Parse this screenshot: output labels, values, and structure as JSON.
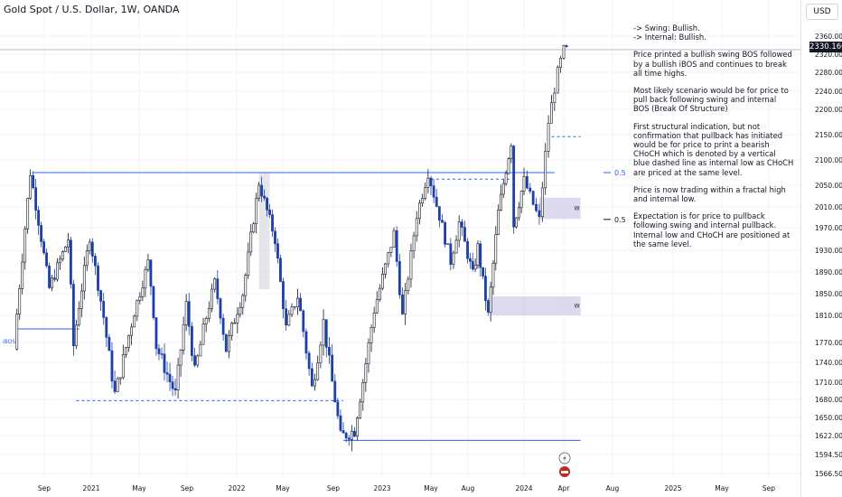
{
  "header": {
    "symbol_title": "Gold Spot / U.S. Dollar, 1W, OANDA",
    "currency": "USD"
  },
  "notes": {
    "swing": "-> Swing: Bullish.",
    "internal": "-> Internal: Bullish.",
    "p1": "Price  printed a bullish swing BOS followed by a bullish iBOS and continues to break all time highs.",
    "p2": "Most likely scenario would be for price to pull back following swing and internal BOS (Break Of Structure)",
    "p3": "First structural indication, but not confirmation that pullback has initiated would be for price to print a bearish CHoCH which is denoted by a vertical blue dashed line as internal low as CHoCH are priced at the same level.",
    "p4": "Price is now trading within a fractal high and internal low.",
    "p5": "Expectation is for price to pullback following swing and internal pullback.  Internal low and CHoCH are positioned at the same level."
  },
  "colors": {
    "up": "#131722",
    "down": "#1e3ea8",
    "line": "#2962ff",
    "zone": "#d1cde8",
    "grid": "#f0f3fa",
    "text": "#131722",
    "axis_text": "#131722"
  },
  "chart_data": {
    "type": "candlestick",
    "title": "Gold Spot / U.S. Dollar, 1W, OANDA",
    "last_price": "2330.160",
    "y_ticks": [
      "2360.000",
      "2320.000",
      "2280.000",
      "2240.000",
      "2200.000",
      "2150.000",
      "2100.000",
      "2050.000",
      "2010.000",
      "1970.000",
      "1930.000",
      "1890.000",
      "1850.000",
      "1810.000",
      "1770.000",
      "1740.000",
      "1710.000",
      "1680.000",
      "1650.000",
      "1622.000",
      "1594.500",
      "1566.500"
    ],
    "y_tick_values": [
      2360,
      2320,
      2280,
      2240,
      2200,
      2150,
      2100,
      2050,
      2010,
      1970,
      1930,
      1890,
      1850,
      1810,
      1770,
      1740,
      1710,
      1680,
      1650,
      1622,
      1594.5,
      1566.5
    ],
    "x_ticks": [
      "Sep",
      "2021",
      "May",
      "Sep",
      "2022",
      "May",
      "Sep",
      "2023",
      "May",
      "Aug",
      "2024",
      "Apr",
      "Aug",
      "2025",
      "May",
      "Sep"
    ],
    "x_tick_dates": [
      "2020-09-01",
      "2021-01-01",
      "2021-05-01",
      "2021-09-01",
      "2022-01-01",
      "2022-05-01",
      "2022-09-01",
      "2023-01-01",
      "2023-05-01",
      "2023-08-01",
      "2024-01-01",
      "2024-04-01",
      "2024-08-01",
      "2025-01-01",
      "2025-05-01",
      "2025-09-01"
    ],
    "x_range": [
      "2020-06-22",
      "2025-11-01"
    ],
    "annotations": {
      "ibos_label": "iBOS",
      "fib_label_upper": "0.5",
      "fib_label_lower": "0.5",
      "zone_label": "W",
      "zone_label_2": "W"
    },
    "levels": {
      "swing_high": 2075,
      "swing_high_start": "2020-08-03",
      "swing_high_end": "2024-03-11",
      "internal_high": 2062,
      "internal_high_start": "2023-05-01",
      "internal_high_end": "2023-12-01",
      "ibos": 1790,
      "ibos_start": "2020-06-22",
      "ibos_end": "2020-12-01",
      "swing_low": 1678,
      "swing_low_start": "2020-11-23",
      "swing_low_end": "2022-09-26",
      "low_2022": 1615,
      "low_2022_start": "2022-09-26",
      "low_2022_end": "2024-05-13",
      "choch_level": 2146,
      "choch_start": "2024-03-04",
      "choch_end": "2024-05-13",
      "fib_upper": 2075,
      "fib_lower": 1986
    },
    "zones": [
      {
        "top": 2027,
        "bottom": 1987,
        "start": "2024-02-05",
        "end": "2024-05-13"
      },
      {
        "top": 1845,
        "bottom": 1810,
        "start": "2023-10-02",
        "end": "2024-05-13"
      }
    ],
    "highlight": {
      "top": 2075,
      "bottom": 1858,
      "start": "2022-02-28",
      "end": "2022-03-28"
    },
    "anchors": [
      [
        "2020-06-22",
        1760
      ],
      [
        "2020-08-03",
        2075
      ],
      [
        "2020-09-21",
        1860
      ],
      [
        "2020-11-09",
        1950
      ],
      [
        "2020-11-23",
        1765
      ],
      [
        "2021-01-04",
        1955
      ],
      [
        "2021-03-08",
        1690
      ],
      [
        "2021-06-01",
        1910
      ],
      [
        "2021-06-21",
        1765
      ],
      [
        "2021-08-09",
        1690
      ],
      [
        "2021-09-06",
        1830
      ],
      [
        "2021-09-27",
        1725
      ],
      [
        "2021-11-15",
        1870
      ],
      [
        "2021-12-13",
        1760
      ],
      [
        "2022-01-24",
        1850
      ],
      [
        "2022-03-07",
        2055
      ],
      [
        "2022-04-18",
        1950
      ],
      [
        "2022-05-16",
        1790
      ],
      [
        "2022-06-13",
        1845
      ],
      [
        "2022-07-18",
        1700
      ],
      [
        "2022-08-15",
        1800
      ],
      [
        "2022-09-26",
        1620
      ],
      [
        "2022-10-31",
        1630
      ],
      [
        "2022-12-19",
        1820
      ],
      [
        "2023-02-06",
        1960
      ],
      [
        "2023-02-27",
        1808
      ],
      [
        "2023-04-03",
        1995
      ],
      [
        "2023-05-01",
        2075
      ],
      [
        "2023-06-26",
        1910
      ],
      [
        "2023-07-17",
        1980
      ],
      [
        "2023-08-21",
        1885
      ],
      [
        "2023-09-04",
        1935
      ],
      [
        "2023-10-02",
        1810
      ],
      [
        "2023-10-30",
        2000
      ],
      [
        "2023-12-04",
        2135
      ],
      [
        "2023-12-11",
        1975
      ],
      [
        "2024-01-08",
        2060
      ],
      [
        "2024-02-12",
        1985
      ],
      [
        "2024-03-04",
        2175
      ],
      [
        "2024-03-25",
        2280
      ],
      [
        "2024-04-08",
        2330
      ]
    ]
  }
}
